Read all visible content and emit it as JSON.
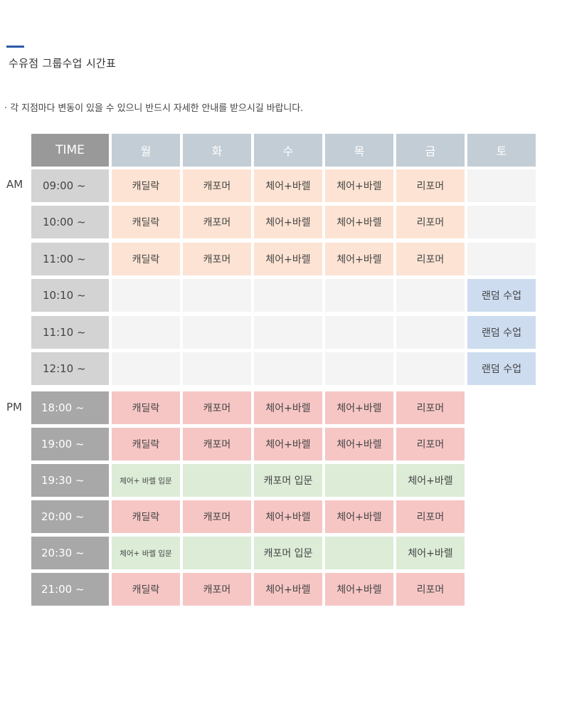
{
  "page": {
    "title": "수유점 그룹수업 시간표",
    "note": "· 각 지점마다 변동이 있을 수 있으니 반드시 자세한 안내를 받으시길 바랍니다."
  },
  "colors": {
    "accent": "#2b5aa8",
    "header_time": "#999999",
    "header_day": "#c3cdd5",
    "am_time": "#d3d3d3",
    "pm_time": "#a8a8a8",
    "peach": "#fde3d3",
    "blank": "#f3f4f3",
    "blue": "#cddcef",
    "pink": "#f6c6c5",
    "green": "#dcecd7"
  },
  "schedule": {
    "am_label": "AM",
    "pm_label": "PM",
    "header": [
      "TIME",
      "월",
      "화",
      "수",
      "목",
      "금",
      "토"
    ],
    "am_rows": [
      {
        "time": "09:00 ~",
        "cells": [
          {
            "text": "캐딜락",
            "style": "peach"
          },
          {
            "text": "캐포머",
            "style": "peach"
          },
          {
            "text": "체어+바렐",
            "style": "peach"
          },
          {
            "text": "체어+바렐",
            "style": "peach"
          },
          {
            "text": "리포머",
            "style": "peach"
          },
          {
            "text": "",
            "style": "blank"
          }
        ]
      },
      {
        "time": "10:00 ~",
        "cells": [
          {
            "text": "캐딜락",
            "style": "peach"
          },
          {
            "text": "캐포머",
            "style": "peach"
          },
          {
            "text": "체어+바렐",
            "style": "peach"
          },
          {
            "text": "체어+바렐",
            "style": "peach"
          },
          {
            "text": "리포머",
            "style": "peach"
          },
          {
            "text": "",
            "style": "blank"
          }
        ]
      },
      {
        "time": "11:00 ~",
        "cells": [
          {
            "text": "캐딜락",
            "style": "peach"
          },
          {
            "text": "캐포머",
            "style": "peach"
          },
          {
            "text": "체어+바렐",
            "style": "peach"
          },
          {
            "text": "체어+바렐",
            "style": "peach"
          },
          {
            "text": "리포머",
            "style": "peach"
          },
          {
            "text": "",
            "style": "blank"
          }
        ]
      },
      {
        "time": "10:10 ~",
        "cells": [
          {
            "text": "",
            "style": "blank"
          },
          {
            "text": "",
            "style": "blank"
          },
          {
            "text": "",
            "style": "blank"
          },
          {
            "text": "",
            "style": "blank"
          },
          {
            "text": "",
            "style": "blank"
          },
          {
            "text": "랜덤 수업",
            "style": "blue"
          }
        ]
      },
      {
        "time": "11:10 ~",
        "cells": [
          {
            "text": "",
            "style": "blank"
          },
          {
            "text": "",
            "style": "blank"
          },
          {
            "text": "",
            "style": "blank"
          },
          {
            "text": "",
            "style": "blank"
          },
          {
            "text": "",
            "style": "blank"
          },
          {
            "text": "랜덤 수업",
            "style": "blue"
          }
        ]
      },
      {
        "time": "12:10 ~",
        "cells": [
          {
            "text": "",
            "style": "blank"
          },
          {
            "text": "",
            "style": "blank"
          },
          {
            "text": "",
            "style": "blank"
          },
          {
            "text": "",
            "style": "blank"
          },
          {
            "text": "",
            "style": "blank"
          },
          {
            "text": "랜덤 수업",
            "style": "blue"
          }
        ]
      }
    ],
    "pm_rows": [
      {
        "time": "18:00 ~",
        "cells": [
          {
            "text": "캐딜락",
            "style": "pink"
          },
          {
            "text": "캐포머",
            "style": "pink"
          },
          {
            "text": "체어+바렐",
            "style": "pink"
          },
          {
            "text": "체어+바렐",
            "style": "pink"
          },
          {
            "text": "리포머",
            "style": "pink"
          },
          {
            "text": "",
            "style": "none"
          }
        ]
      },
      {
        "time": "19:00 ~",
        "cells": [
          {
            "text": "캐딜락",
            "style": "pink"
          },
          {
            "text": "캐포머",
            "style": "pink"
          },
          {
            "text": "체어+바렐",
            "style": "pink"
          },
          {
            "text": "체어+바렐",
            "style": "pink"
          },
          {
            "text": "리포머",
            "style": "pink"
          },
          {
            "text": "",
            "style": "none"
          }
        ]
      },
      {
        "time": "19:30 ~",
        "cells": [
          {
            "text": "체어+ 바렐 입문",
            "style": "green",
            "small": true
          },
          {
            "text": "",
            "style": "green"
          },
          {
            "text": "캐포머 입문",
            "style": "green"
          },
          {
            "text": "",
            "style": "green"
          },
          {
            "text": "체어+바렐",
            "style": "green"
          },
          {
            "text": "",
            "style": "none"
          }
        ]
      },
      {
        "time": "20:00 ~",
        "cells": [
          {
            "text": "캐딜락",
            "style": "pink"
          },
          {
            "text": "캐포머",
            "style": "pink"
          },
          {
            "text": "체어+바렐",
            "style": "pink"
          },
          {
            "text": "체어+바렐",
            "style": "pink"
          },
          {
            "text": "리포머",
            "style": "pink"
          },
          {
            "text": "",
            "style": "none"
          }
        ]
      },
      {
        "time": "20:30 ~",
        "cells": [
          {
            "text": "체어+ 바렐 입문",
            "style": "green",
            "small": true
          },
          {
            "text": "",
            "style": "green"
          },
          {
            "text": "캐포머 입문",
            "style": "green"
          },
          {
            "text": "",
            "style": "green"
          },
          {
            "text": "체어+바렐",
            "style": "green"
          },
          {
            "text": "",
            "style": "none"
          }
        ]
      },
      {
        "time": "21:00 ~",
        "cells": [
          {
            "text": "캐딜락",
            "style": "pink"
          },
          {
            "text": "캐포머",
            "style": "pink"
          },
          {
            "text": "체어+바렐",
            "style": "pink"
          },
          {
            "text": "체어+바렐",
            "style": "pink"
          },
          {
            "text": "리포머",
            "style": "pink"
          },
          {
            "text": "",
            "style": "none"
          }
        ]
      }
    ]
  }
}
